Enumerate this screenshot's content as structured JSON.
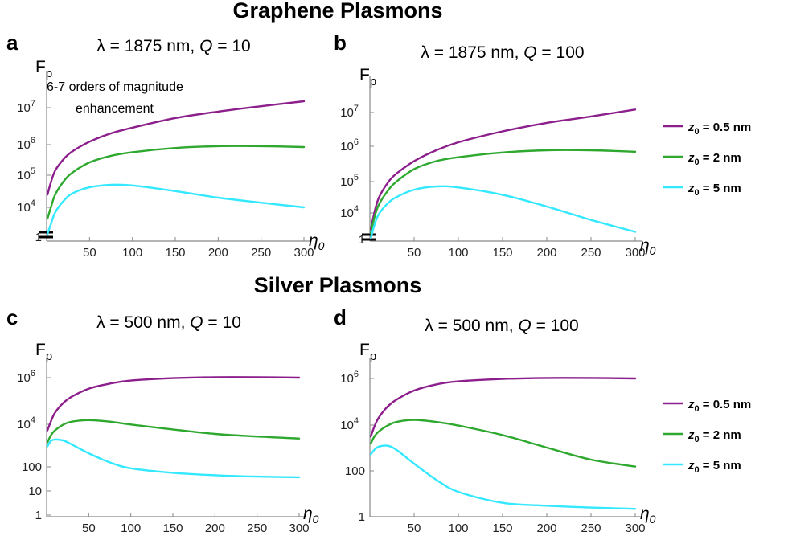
{
  "section_titles": [
    "Graphene Plasmons",
    "Silver Plasmons"
  ],
  "series_colors": [
    "#8c1f8c",
    "#2ea82e",
    "#33e8ff"
  ],
  "legend": [
    {
      "z": "0",
      "value": "= 0.5 nm"
    },
    {
      "z": "0",
      "value": "= 2 nm"
    },
    {
      "z": "0",
      "value": "= 5 nm"
    }
  ],
  "annotation": [
    "6-7 orders of magnitude",
    "enhancement"
  ],
  "chart_data": [
    {
      "type": "line",
      "panel": "a",
      "title_prefix": "λ = 1875 nm,  ",
      "title_q": "Q",
      "title_suffix": " = 10",
      "ylabel": "F",
      "ylabel_sub": "p",
      "xlabel": "η",
      "xlabel_sub": "0",
      "ylog": true,
      "xlim": [
        0,
        300
      ],
      "xticks": [
        50,
        100,
        150,
        200,
        250,
        300
      ],
      "yticks": [
        {
          "label": "1",
          "value": 1
        },
        {
          "label": "10",
          "exp": "4",
          "value": 10000
        },
        {
          "label": "10",
          "exp": "5",
          "value": 100000
        },
        {
          "label": "10",
          "exp": "6",
          "value": 1000000
        },
        {
          "label": "10",
          "exp": "7",
          "value": 10000000
        }
      ],
      "axis_break": true,
      "series": [
        {
          "x": [
            1,
            5,
            10,
            20,
            30,
            50,
            75,
            100,
            150,
            200,
            250,
            300
          ],
          "y": [
            25000,
            60000,
            140000,
            320000,
            550000,
            1100000,
            2000000,
            3000000,
            6000000,
            9500000,
            14000000,
            20000000
          ]
        },
        {
          "x": [
            1,
            5,
            10,
            20,
            30,
            50,
            75,
            100,
            150,
            200,
            250,
            300
          ],
          "y": [
            4500,
            10000,
            25000,
            65000,
            120000,
            250000,
            400000,
            520000,
            700000,
            800000,
            800000,
            750000
          ]
        },
        {
          "x": [
            1,
            5,
            10,
            20,
            30,
            50,
            75,
            100,
            150,
            200,
            250,
            300
          ],
          "y": [
            1500,
            3000,
            7000,
            16000,
            27000,
            42000,
            50000,
            48000,
            32000,
            20000,
            14000,
            10000
          ]
        }
      ]
    },
    {
      "type": "line",
      "panel": "b",
      "title_prefix": "λ = 1875 nm,  ",
      "title_q": "Q",
      "title_suffix": " = 100",
      "ylabel": "F",
      "ylabel_sub": "p",
      "xlabel": "η",
      "xlabel_sub": "0",
      "ylog": true,
      "xlim": [
        0,
        300
      ],
      "xticks": [
        50,
        100,
        150,
        200,
        250,
        300
      ],
      "yticks": [
        {
          "label": "1",
          "value": 1
        },
        {
          "label": "10",
          "exp": "4",
          "value": 10000
        },
        {
          "label": "10",
          "exp": "5",
          "value": 100000
        },
        {
          "label": "10",
          "exp": "6",
          "value": 1000000
        },
        {
          "label": "10",
          "exp": "7",
          "value": 10000000
        }
      ],
      "axis_break": true,
      "series": [
        {
          "x": [
            1,
            5,
            10,
            20,
            30,
            50,
            75,
            100,
            150,
            200,
            250,
            300
          ],
          "y": [
            3000,
            10000,
            30000,
            90000,
            180000,
            450000,
            1000000,
            1800000,
            4000000,
            7500000,
            12000000,
            20000000
          ]
        },
        {
          "x": [
            1,
            5,
            10,
            20,
            30,
            50,
            75,
            100,
            150,
            200,
            250,
            300
          ],
          "y": [
            2200,
            7000,
            18000,
            50000,
            100000,
            250000,
            450000,
            600000,
            850000,
            1000000,
            1000000,
            900000
          ]
        },
        {
          "x": [
            1,
            5,
            10,
            20,
            30,
            50,
            75,
            100,
            150,
            200,
            250,
            300
          ],
          "y": [
            1500,
            4000,
            9000,
            20000,
            32000,
            55000,
            70000,
            65000,
            38000,
            16000,
            6000,
            2500
          ]
        }
      ]
    },
    {
      "type": "line",
      "panel": "c",
      "title_prefix": "λ = 500 nm,  ",
      "title_q": "Q",
      "title_suffix": " = 10",
      "ylabel": "F",
      "ylabel_sub": "p",
      "xlabel": "η",
      "xlabel_sub": "0",
      "ylog": true,
      "xlim": [
        0,
        300
      ],
      "ylim": [
        1,
        2000000
      ],
      "xticks": [
        50,
        100,
        150,
        200,
        250,
        300
      ],
      "yticks": [
        {
          "label": "1",
          "value": 1
        },
        {
          "label": "10",
          "value": 10
        },
        {
          "label": "100",
          "value": 100
        },
        {
          "label": "10",
          "exp": "4",
          "value": 10000
        },
        {
          "label": "10",
          "exp": "6",
          "value": 1000000
        }
      ],
      "axis_break": false,
      "series": [
        {
          "x": [
            1,
            5,
            10,
            20,
            30,
            50,
            75,
            100,
            150,
            200,
            250,
            300
          ],
          "y": [
            5000,
            12000,
            30000,
            80000,
            150000,
            330000,
            550000,
            750000,
            950000,
            1050000,
            1050000,
            1000000
          ]
        },
        {
          "x": [
            1,
            5,
            10,
            20,
            30,
            50,
            75,
            100,
            150,
            200,
            250,
            300
          ],
          "y": [
            1500,
            3000,
            5000,
            9000,
            12000,
            14000,
            12000,
            9000,
            5500,
            3500,
            2700,
            2200
          ]
        },
        {
          "x": [
            1,
            5,
            10,
            20,
            30,
            50,
            75,
            100,
            150,
            200,
            250,
            300
          ],
          "y": [
            1000,
            1700,
            2000,
            1800,
            1200,
            500,
            200,
            110,
            70,
            55,
            48,
            45
          ]
        }
      ]
    },
    {
      "type": "line",
      "panel": "d",
      "title_prefix": "λ = 500 nm,  ",
      "title_q": "Q",
      "title_suffix": " = 100",
      "ylabel": "F",
      "ylabel_sub": "p",
      "xlabel": "η",
      "xlabel_sub": "0",
      "ylog": true,
      "xlim": [
        0,
        300
      ],
      "ylim": [
        1,
        2000000
      ],
      "xticks": [
        50,
        100,
        150,
        200,
        250,
        300
      ],
      "yticks": [
        {
          "label": "1",
          "value": 1
        },
        {
          "label": "100",
          "value": 100
        },
        {
          "label": "10",
          "exp": "4",
          "value": 10000
        },
        {
          "label": "10",
          "exp": "6",
          "value": 1000000
        }
      ],
      "axis_break": false,
      "series": [
        {
          "x": [
            1,
            5,
            10,
            20,
            30,
            50,
            75,
            100,
            150,
            200,
            250,
            300
          ],
          "y": [
            3000,
            8000,
            20000,
            60000,
            120000,
            300000,
            550000,
            750000,
            950000,
            1050000,
            1050000,
            1000000
          ]
        },
        {
          "x": [
            1,
            5,
            10,
            20,
            30,
            50,
            75,
            100,
            150,
            200,
            250,
            300
          ],
          "y": [
            1500,
            3000,
            5000,
            9000,
            13000,
            16000,
            13000,
            9000,
            3500,
            1000,
            300,
            150
          ]
        },
        {
          "x": [
            1,
            5,
            10,
            20,
            30,
            50,
            75,
            100,
            150,
            200,
            250,
            300
          ],
          "y": [
            500,
            800,
            1100,
            1200,
            800,
            200,
            40,
            12,
            4,
            3,
            2.5,
            2.2
          ]
        }
      ]
    }
  ]
}
